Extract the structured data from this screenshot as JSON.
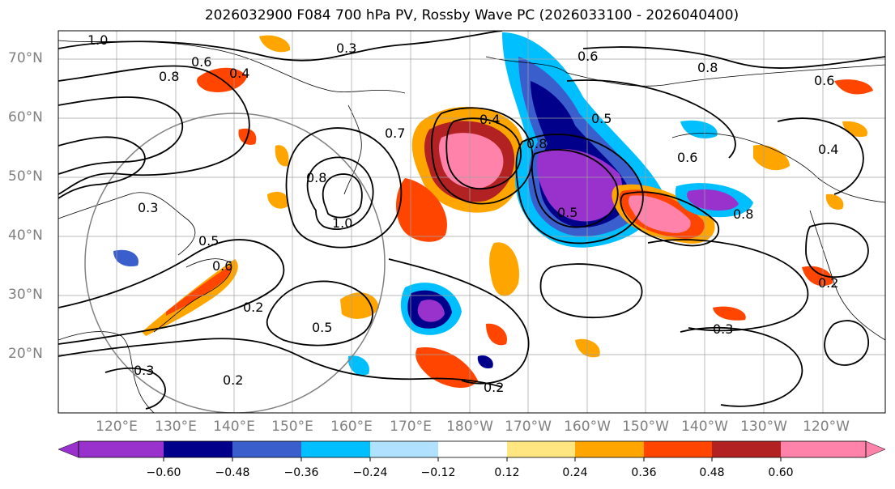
{
  "title": "2026032900 F084 700 hPa PV, Rossby Wave PC (2026033100 - 2026040400)",
  "latitude_labels": [
    "70°N",
    "60°N",
    "50°N",
    "40°N",
    "30°N",
    "20°N"
  ],
  "longitude_labels": [
    "120°E",
    "130°E",
    "140°E",
    "150°E",
    "160°E",
    "170°E",
    "180°W",
    "170°W",
    "160°W",
    "150°W",
    "140°W",
    "130°W",
    "120°W"
  ],
  "contour_labels": [
    "1.0",
    "0.3",
    "0.6",
    "0.8",
    "0.4",
    "0.6",
    "0.8",
    "0.6",
    "0.3",
    "0.8",
    "1.0",
    "0.5",
    "0.6",
    "0.2",
    "0.5",
    "0.2",
    "0.3",
    "0.2",
    "0.3",
    "0.4",
    "0.8",
    "0.7",
    "0.4",
    "0.6",
    "0.5",
    "0.5",
    "0.8",
    "0.2"
  ],
  "colorbar": {
    "ticks": [
      "−0.60",
      "−0.48",
      "−0.36",
      "−0.24",
      "−0.12",
      "0.12",
      "0.24",
      "0.36",
      "0.48",
      "0.60"
    ],
    "colors": [
      "#9932cc",
      "#00008b",
      "#3a5fcd",
      "#00bfff",
      "#b0e2ff",
      "#ffffff",
      "#ffe680",
      "#ffa500",
      "#ff4500",
      "#b22222",
      "#ff82ab"
    ]
  }
}
